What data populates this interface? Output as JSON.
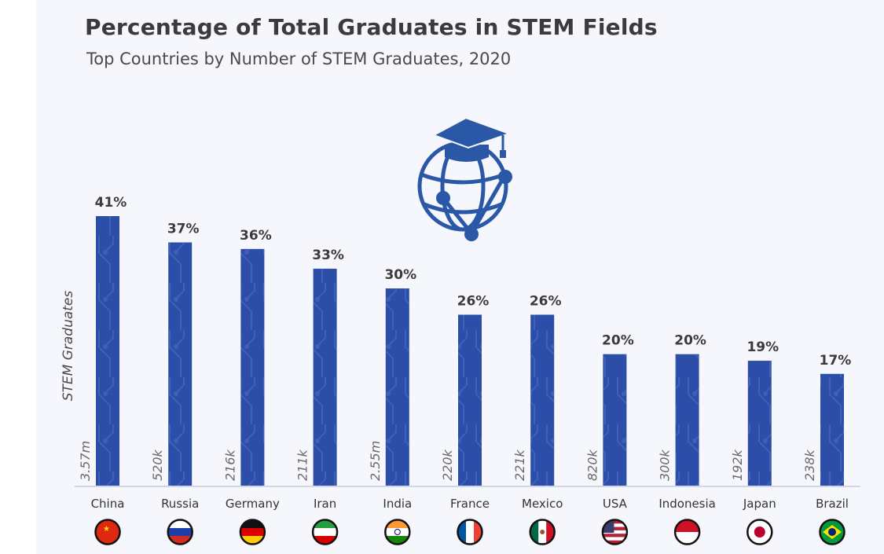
{
  "title": "Percentage of Total Graduates in STEM Fields",
  "subtitle": "Top Countries by Number of STEM Graduates, 2020",
  "chart_data": {
    "type": "bar",
    "title": "Percentage of Total Graduates in STEM Fields",
    "subtitle": "Top Countries by Number of STEM Graduates, 2020",
    "xlabel": "",
    "ylabel": "STEM Graduates",
    "categories": [
      "China",
      "Russia",
      "Germany",
      "Iran",
      "India",
      "France",
      "Mexico",
      "USA",
      "Indonesia",
      "Japan",
      "Brazil"
    ],
    "values": [
      41,
      37,
      36,
      33,
      30,
      26,
      26,
      20,
      20,
      19,
      17
    ],
    "value_labels": [
      "41%",
      "37%",
      "36%",
      "33%",
      "30%",
      "26%",
      "26%",
      "20%",
      "20%",
      "19%",
      "17%"
    ],
    "graduate_counts": [
      "3.57m",
      "520k",
      "216k",
      "211k",
      "2.55m",
      "220k",
      "221k",
      "820k",
      "300k",
      "192k",
      "238k"
    ],
    "flags": [
      "china-flag",
      "russia-flag",
      "germany-flag",
      "iran-flag",
      "india-flag",
      "france-flag",
      "mexico-flag",
      "usa-flag",
      "indonesia-flag",
      "japan-flag",
      "brazil-flag"
    ],
    "ylim": [
      0,
      41
    ],
    "grid": false,
    "legend": "none",
    "colors": {
      "bar": "#2d4ea8",
      "bar_pattern": "#4b6fc4",
      "axis": "#c8ccd6",
      "label": "#3b3b3d",
      "count": "#6a6a6c"
    }
  }
}
